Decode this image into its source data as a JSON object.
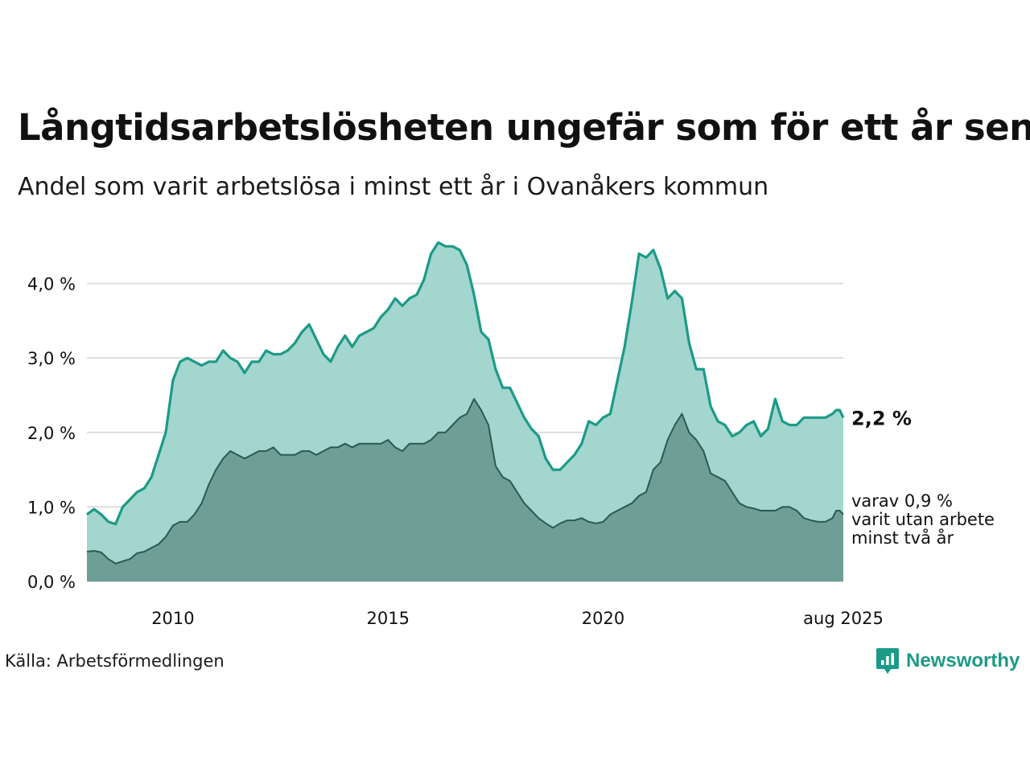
{
  "title": "Långtidsarbetslösheten ungefär som för ett år sen",
  "subtitle": "Andel som varit arbetslösa i minst ett år i Ovanåkers kommun",
  "source": "Källa: Arbetsförmedlingen",
  "brand": "Newsworthy",
  "colors": {
    "main_line": "#1c9a87",
    "main_fill": "#a3d6cf",
    "sub_line": "#2a5a52",
    "sub_fill": "#6f9e97",
    "grid": "#dddddd",
    "brand": "#1c9a87"
  },
  "chart_data": {
    "type": "area",
    "title": "Långtidsarbetslösheten ungefär som för ett år sen",
    "subtitle": "Andel som varit arbetslösa i minst ett år i Ovanåkers kommun",
    "x_range": [
      "2008-01",
      "2025-08"
    ],
    "x_ticks": [
      {
        "value": "2010-01",
        "label": "2010"
      },
      {
        "value": "2015-01",
        "label": "2015"
      },
      {
        "value": "2020-01",
        "label": "2020"
      },
      {
        "value": "2025-08",
        "label": "aug 2025"
      }
    ],
    "ylim": [
      0,
      4.6
    ],
    "y_ticks": [
      {
        "value": 0,
        "label": "0,0 %"
      },
      {
        "value": 1,
        "label": "1,0 %"
      },
      {
        "value": 2,
        "label": "2,0 %"
      },
      {
        "value": 3,
        "label": "3,0 %"
      },
      {
        "value": 4,
        "label": "4,0 %"
      }
    ],
    "grid": true,
    "series": [
      {
        "key": "total",
        "end_label": "2,2 %",
        "points": [
          [
            "2008-01",
            0.9
          ],
          [
            "2008-03",
            0.97
          ],
          [
            "2008-05",
            0.9
          ],
          [
            "2008-07",
            0.8
          ],
          [
            "2008-09",
            0.77
          ],
          [
            "2008-11",
            1.0
          ],
          [
            "2009-01",
            1.1
          ],
          [
            "2009-03",
            1.2
          ],
          [
            "2009-05",
            1.25
          ],
          [
            "2009-07",
            1.4
          ],
          [
            "2009-09",
            1.7
          ],
          [
            "2009-11",
            2.0
          ],
          [
            "2010-01",
            2.7
          ],
          [
            "2010-03",
            2.95
          ],
          [
            "2010-05",
            3.0
          ],
          [
            "2010-07",
            2.95
          ],
          [
            "2010-09",
            2.9
          ],
          [
            "2010-11",
            2.95
          ],
          [
            "2011-01",
            2.95
          ],
          [
            "2011-03",
            3.1
          ],
          [
            "2011-05",
            3.0
          ],
          [
            "2011-07",
            2.95
          ],
          [
            "2011-09",
            2.8
          ],
          [
            "2011-11",
            2.95
          ],
          [
            "2012-01",
            2.95
          ],
          [
            "2012-03",
            3.1
          ],
          [
            "2012-05",
            3.05
          ],
          [
            "2012-07",
            3.05
          ],
          [
            "2012-09",
            3.1
          ],
          [
            "2012-11",
            3.2
          ],
          [
            "2013-01",
            3.35
          ],
          [
            "2013-03",
            3.45
          ],
          [
            "2013-05",
            3.25
          ],
          [
            "2013-07",
            3.05
          ],
          [
            "2013-09",
            2.95
          ],
          [
            "2013-11",
            3.15
          ],
          [
            "2014-01",
            3.3
          ],
          [
            "2014-03",
            3.15
          ],
          [
            "2014-05",
            3.3
          ],
          [
            "2014-07",
            3.35
          ],
          [
            "2014-09",
            3.4
          ],
          [
            "2014-11",
            3.55
          ],
          [
            "2015-01",
            3.65
          ],
          [
            "2015-03",
            3.8
          ],
          [
            "2015-05",
            3.7
          ],
          [
            "2015-07",
            3.8
          ],
          [
            "2015-09",
            3.85
          ],
          [
            "2015-11",
            4.05
          ],
          [
            "2016-01",
            4.4
          ],
          [
            "2016-03",
            4.55
          ],
          [
            "2016-05",
            4.5
          ],
          [
            "2016-07",
            4.5
          ],
          [
            "2016-09",
            4.45
          ],
          [
            "2016-11",
            4.25
          ],
          [
            "2017-01",
            3.85
          ],
          [
            "2017-03",
            3.35
          ],
          [
            "2017-05",
            3.25
          ],
          [
            "2017-07",
            2.85
          ],
          [
            "2017-09",
            2.6
          ],
          [
            "2017-11",
            2.6
          ],
          [
            "2018-01",
            2.4
          ],
          [
            "2018-03",
            2.2
          ],
          [
            "2018-05",
            2.05
          ],
          [
            "2018-07",
            1.95
          ],
          [
            "2018-09",
            1.65
          ],
          [
            "2018-11",
            1.5
          ],
          [
            "2019-01",
            1.5
          ],
          [
            "2019-03",
            1.6
          ],
          [
            "2019-05",
            1.7
          ],
          [
            "2019-07",
            1.85
          ],
          [
            "2019-09",
            2.15
          ],
          [
            "2019-11",
            2.1
          ],
          [
            "2020-01",
            2.2
          ],
          [
            "2020-03",
            2.25
          ],
          [
            "2020-05",
            2.7
          ],
          [
            "2020-07",
            3.15
          ],
          [
            "2020-09",
            3.75
          ],
          [
            "2020-11",
            4.4
          ],
          [
            "2021-01",
            4.35
          ],
          [
            "2021-03",
            4.45
          ],
          [
            "2021-05",
            4.2
          ],
          [
            "2021-07",
            3.8
          ],
          [
            "2021-09",
            3.9
          ],
          [
            "2021-11",
            3.8
          ],
          [
            "2022-01",
            3.2
          ],
          [
            "2022-03",
            2.85
          ],
          [
            "2022-05",
            2.85
          ],
          [
            "2022-07",
            2.35
          ],
          [
            "2022-09",
            2.15
          ],
          [
            "2022-11",
            2.1
          ],
          [
            "2023-01",
            1.95
          ],
          [
            "2023-03",
            2.0
          ],
          [
            "2023-05",
            2.1
          ],
          [
            "2023-07",
            2.15
          ],
          [
            "2023-09",
            1.95
          ],
          [
            "2023-11",
            2.05
          ],
          [
            "2024-01",
            2.45
          ],
          [
            "2024-03",
            2.15
          ],
          [
            "2024-05",
            2.1
          ],
          [
            "2024-07",
            2.1
          ],
          [
            "2024-09",
            2.2
          ],
          [
            "2024-11",
            2.2
          ],
          [
            "2025-01",
            2.2
          ],
          [
            "2025-03",
            2.2
          ],
          [
            "2025-05",
            2.25
          ],
          [
            "2025-06",
            2.3
          ],
          [
            "2025-07",
            2.3
          ],
          [
            "2025-08",
            2.2
          ]
        ]
      },
      {
        "key": "two_years",
        "end_label": [
          "varav 0,9 %",
          "varit utan arbete",
          "minst två år"
        ],
        "points": [
          [
            "2008-01",
            0.4
          ],
          [
            "2008-03",
            0.41
          ],
          [
            "2008-05",
            0.39
          ],
          [
            "2008-07",
            0.3
          ],
          [
            "2008-09",
            0.24
          ],
          [
            "2008-11",
            0.27
          ],
          [
            "2009-01",
            0.3
          ],
          [
            "2009-03",
            0.38
          ],
          [
            "2009-05",
            0.4
          ],
          [
            "2009-07",
            0.45
          ],
          [
            "2009-09",
            0.5
          ],
          [
            "2009-11",
            0.6
          ],
          [
            "2010-01",
            0.75
          ],
          [
            "2010-03",
            0.8
          ],
          [
            "2010-05",
            0.8
          ],
          [
            "2010-07",
            0.9
          ],
          [
            "2010-09",
            1.05
          ],
          [
            "2010-11",
            1.3
          ],
          [
            "2011-01",
            1.5
          ],
          [
            "2011-03",
            1.65
          ],
          [
            "2011-05",
            1.75
          ],
          [
            "2011-07",
            1.7
          ],
          [
            "2011-09",
            1.65
          ],
          [
            "2011-11",
            1.7
          ],
          [
            "2012-01",
            1.75
          ],
          [
            "2012-03",
            1.75
          ],
          [
            "2012-05",
            1.8
          ],
          [
            "2012-07",
            1.7
          ],
          [
            "2012-09",
            1.7
          ],
          [
            "2012-11",
            1.7
          ],
          [
            "2013-01",
            1.75
          ],
          [
            "2013-03",
            1.75
          ],
          [
            "2013-05",
            1.7
          ],
          [
            "2013-07",
            1.75
          ],
          [
            "2013-09",
            1.8
          ],
          [
            "2013-11",
            1.8
          ],
          [
            "2014-01",
            1.85
          ],
          [
            "2014-03",
            1.8
          ],
          [
            "2014-05",
            1.85
          ],
          [
            "2014-07",
            1.85
          ],
          [
            "2014-09",
            1.85
          ],
          [
            "2014-11",
            1.85
          ],
          [
            "2015-01",
            1.9
          ],
          [
            "2015-03",
            1.8
          ],
          [
            "2015-05",
            1.75
          ],
          [
            "2015-07",
            1.85
          ],
          [
            "2015-09",
            1.85
          ],
          [
            "2015-11",
            1.85
          ],
          [
            "2016-01",
            1.9
          ],
          [
            "2016-03",
            2.0
          ],
          [
            "2016-05",
            2.0
          ],
          [
            "2016-07",
            2.1
          ],
          [
            "2016-09",
            2.2
          ],
          [
            "2016-11",
            2.25
          ],
          [
            "2017-01",
            2.45
          ],
          [
            "2017-03",
            2.3
          ],
          [
            "2017-05",
            2.1
          ],
          [
            "2017-07",
            1.55
          ],
          [
            "2017-09",
            1.4
          ],
          [
            "2017-11",
            1.35
          ],
          [
            "2018-01",
            1.2
          ],
          [
            "2018-03",
            1.05
          ],
          [
            "2018-05",
            0.95
          ],
          [
            "2018-07",
            0.85
          ],
          [
            "2018-09",
            0.78
          ],
          [
            "2018-11",
            0.72
          ],
          [
            "2019-01",
            0.78
          ],
          [
            "2019-03",
            0.82
          ],
          [
            "2019-05",
            0.82
          ],
          [
            "2019-07",
            0.85
          ],
          [
            "2019-09",
            0.8
          ],
          [
            "2019-11",
            0.78
          ],
          [
            "2020-01",
            0.8
          ],
          [
            "2020-03",
            0.9
          ],
          [
            "2020-05",
            0.95
          ],
          [
            "2020-07",
            1.0
          ],
          [
            "2020-09",
            1.05
          ],
          [
            "2020-11",
            1.15
          ],
          [
            "2021-01",
            1.2
          ],
          [
            "2021-03",
            1.5
          ],
          [
            "2021-05",
            1.6
          ],
          [
            "2021-07",
            1.9
          ],
          [
            "2021-09",
            2.1
          ],
          [
            "2021-11",
            2.25
          ],
          [
            "2022-01",
            2.0
          ],
          [
            "2022-03",
            1.9
          ],
          [
            "2022-05",
            1.75
          ],
          [
            "2022-07",
            1.45
          ],
          [
            "2022-09",
            1.4
          ],
          [
            "2022-11",
            1.35
          ],
          [
            "2023-01",
            1.2
          ],
          [
            "2023-03",
            1.05
          ],
          [
            "2023-05",
            1.0
          ],
          [
            "2023-07",
            0.98
          ],
          [
            "2023-09",
            0.95
          ],
          [
            "2023-11",
            0.95
          ],
          [
            "2024-01",
            0.95
          ],
          [
            "2024-03",
            1.0
          ],
          [
            "2024-05",
            1.0
          ],
          [
            "2024-07",
            0.95
          ],
          [
            "2024-09",
            0.85
          ],
          [
            "2024-11",
            0.82
          ],
          [
            "2025-01",
            0.8
          ],
          [
            "2025-03",
            0.8
          ],
          [
            "2025-05",
            0.85
          ],
          [
            "2025-06",
            0.95
          ],
          [
            "2025-07",
            0.95
          ],
          [
            "2025-08",
            0.9
          ]
        ]
      }
    ]
  }
}
